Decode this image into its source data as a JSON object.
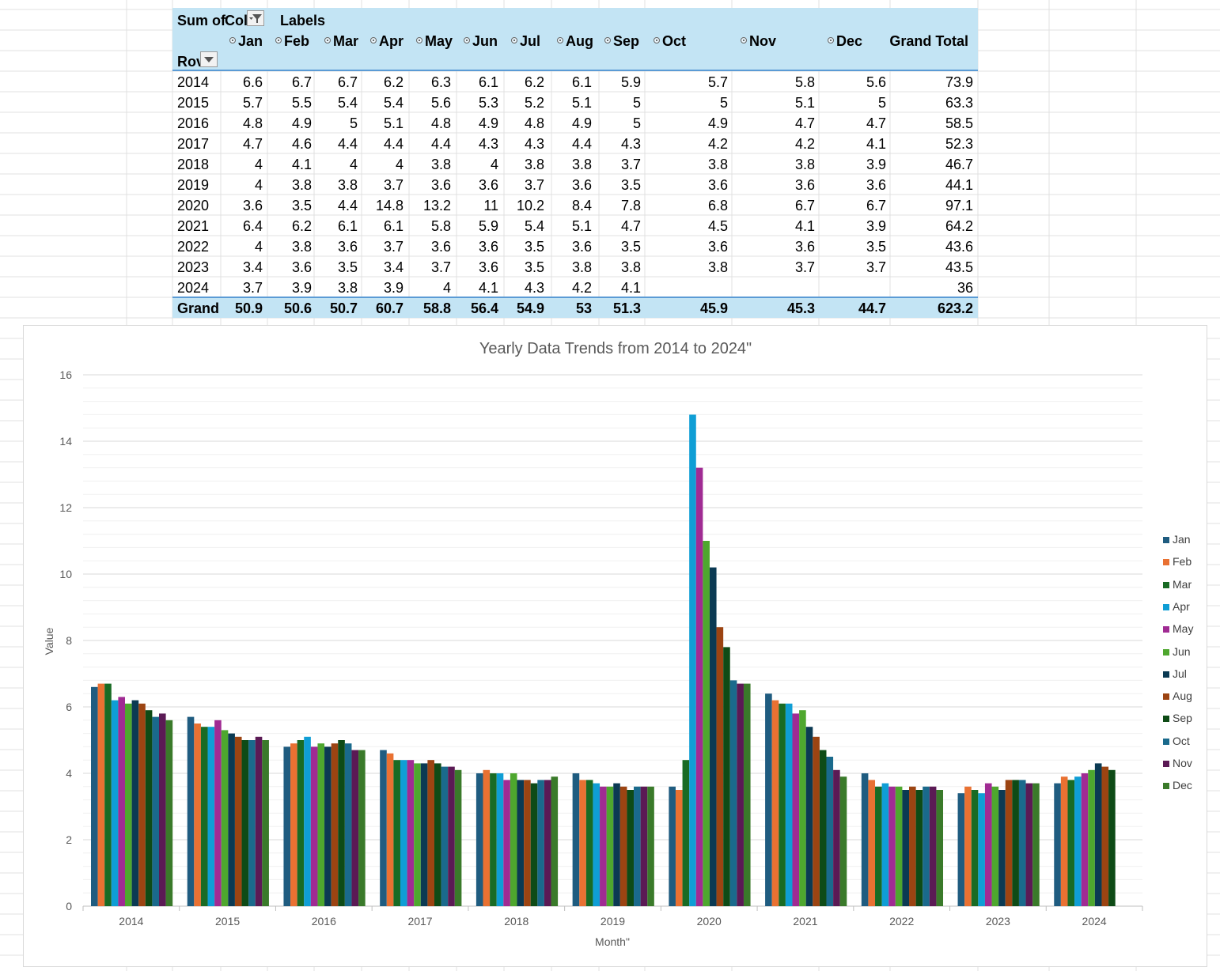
{
  "pivot": {
    "corner_label": "Sum of",
    "col_labels_text_a": "Col",
    "col_labels_text_b": "Labels",
    "row_labels_text": "Rov",
    "grand_total_header": "Grand Total",
    "grand_row_label": "Grand",
    "months": [
      "Jan",
      "Feb",
      "Mar",
      "Apr",
      "May",
      "Jun",
      "Jul",
      "Aug",
      "Sep",
      "Oct",
      "Nov",
      "Dec"
    ],
    "rows": [
      {
        "year": "2014",
        "values": [
          "6.6",
          "6.7",
          "6.7",
          "6.2",
          "6.3",
          "6.1",
          "6.2",
          "6.1",
          "5.9",
          "5.7",
          "5.8",
          "5.6"
        ],
        "total": "73.9"
      },
      {
        "year": "2015",
        "values": [
          "5.7",
          "5.5",
          "5.4",
          "5.4",
          "5.6",
          "5.3",
          "5.2",
          "5.1",
          "5",
          "5",
          "5.1",
          "5"
        ],
        "total": "63.3"
      },
      {
        "year": "2016",
        "values": [
          "4.8",
          "4.9",
          "5",
          "5.1",
          "4.8",
          "4.9",
          "4.8",
          "4.9",
          "5",
          "4.9",
          "4.7",
          "4.7"
        ],
        "total": "58.5"
      },
      {
        "year": "2017",
        "values": [
          "4.7",
          "4.6",
          "4.4",
          "4.4",
          "4.4",
          "4.3",
          "4.3",
          "4.4",
          "4.3",
          "4.2",
          "4.2",
          "4.1"
        ],
        "total": "52.3"
      },
      {
        "year": "2018",
        "values": [
          "4",
          "4.1",
          "4",
          "4",
          "3.8",
          "4",
          "3.8",
          "3.8",
          "3.7",
          "3.8",
          "3.8",
          "3.9"
        ],
        "total": "46.7"
      },
      {
        "year": "2019",
        "values": [
          "4",
          "3.8",
          "3.8",
          "3.7",
          "3.6",
          "3.6",
          "3.7",
          "3.6",
          "3.5",
          "3.6",
          "3.6",
          "3.6"
        ],
        "total": "44.1"
      },
      {
        "year": "2020",
        "values": [
          "3.6",
          "3.5",
          "4.4",
          "14.8",
          "13.2",
          "11",
          "10.2",
          "8.4",
          "7.8",
          "6.8",
          "6.7",
          "6.7"
        ],
        "total": "97.1"
      },
      {
        "year": "2021",
        "values": [
          "6.4",
          "6.2",
          "6.1",
          "6.1",
          "5.8",
          "5.9",
          "5.4",
          "5.1",
          "4.7",
          "4.5",
          "4.1",
          "3.9"
        ],
        "total": "64.2"
      },
      {
        "year": "2022",
        "values": [
          "4",
          "3.8",
          "3.6",
          "3.7",
          "3.6",
          "3.6",
          "3.5",
          "3.6",
          "3.5",
          "3.6",
          "3.6",
          "3.5"
        ],
        "total": "43.6"
      },
      {
        "year": "2023",
        "values": [
          "3.4",
          "3.6",
          "3.5",
          "3.4",
          "3.7",
          "3.6",
          "3.5",
          "3.8",
          "3.8",
          "3.8",
          "3.7",
          "3.7"
        ],
        "total": "43.5"
      },
      {
        "year": "2024",
        "values": [
          "3.7",
          "3.9",
          "3.8",
          "3.9",
          "4",
          "4.1",
          "4.3",
          "4.2",
          "4.1",
          "",
          "",
          ""
        ],
        "total": "36"
      }
    ],
    "grand_values": [
      "50.9",
      "50.6",
      "50.7",
      "60.7",
      "58.8",
      "56.4",
      "54.9",
      "53",
      "51.3",
      "45.9",
      "45.3",
      "44.7"
    ],
    "grand_total": "623.2"
  },
  "chart_data": {
    "type": "bar",
    "title": "Yearly Data Trends from 2014 to 2024\"",
    "xlabel": "Month\"",
    "ylabel": "Value",
    "ylim": [
      0,
      16
    ],
    "y_ticks": [
      "0",
      "2",
      "4",
      "6",
      "8",
      "10",
      "12",
      "14",
      "16"
    ],
    "grid": true,
    "legend_position": "right",
    "categories": [
      "2014",
      "2015",
      "2016",
      "2017",
      "2018",
      "2019",
      "2020",
      "2021",
      "2022",
      "2023",
      "2024"
    ],
    "series": [
      {
        "name": "Jan",
        "color": "#1f5c80",
        "values": [
          6.6,
          5.7,
          4.8,
          4.7,
          4,
          4,
          3.6,
          6.4,
          4,
          3.4,
          3.7
        ]
      },
      {
        "name": "Feb",
        "color": "#e97132",
        "values": [
          6.7,
          5.5,
          4.9,
          4.6,
          4.1,
          3.8,
          3.5,
          6.2,
          3.8,
          3.6,
          3.9
        ]
      },
      {
        "name": "Mar",
        "color": "#196b24",
        "values": [
          6.7,
          5.4,
          5,
          4.4,
          4,
          3.8,
          4.4,
          6.1,
          3.6,
          3.5,
          3.8
        ]
      },
      {
        "name": "Apr",
        "color": "#0f9ed5",
        "values": [
          6.2,
          5.4,
          5.1,
          4.4,
          4,
          3.7,
          14.8,
          6.1,
          3.7,
          3.4,
          3.9
        ]
      },
      {
        "name": "May",
        "color": "#a02b93",
        "values": [
          6.3,
          5.6,
          4.8,
          4.4,
          3.8,
          3.6,
          13.2,
          5.8,
          3.6,
          3.7,
          4
        ]
      },
      {
        "name": "Jun",
        "color": "#4ea72e",
        "values": [
          6.1,
          5.3,
          4.9,
          4.3,
          4,
          3.6,
          11,
          5.9,
          3.6,
          3.6,
          4.1
        ]
      },
      {
        "name": "Jul",
        "color": "#0b3a53",
        "values": [
          6.2,
          5.2,
          4.8,
          4.3,
          3.8,
          3.7,
          10.2,
          5.4,
          3.5,
          3.5,
          4.3
        ]
      },
      {
        "name": "Aug",
        "color": "#9c4412",
        "values": [
          6.1,
          5.1,
          4.9,
          4.4,
          3.8,
          3.6,
          8.4,
          5.1,
          3.6,
          3.8,
          4.2
        ]
      },
      {
        "name": "Sep",
        "color": "#0e4b16",
        "values": [
          5.9,
          5,
          5,
          4.3,
          3.7,
          3.5,
          7.8,
          4.7,
          3.5,
          3.8,
          4.1
        ]
      },
      {
        "name": "Oct",
        "color": "#1a6a8c",
        "values": [
          5.7,
          5,
          4.9,
          4.2,
          3.8,
          3.6,
          6.8,
          4.5,
          3.6,
          3.8,
          null
        ]
      },
      {
        "name": "Nov",
        "color": "#5b1a55",
        "values": [
          5.8,
          5.1,
          4.7,
          4.2,
          3.8,
          3.6,
          6.7,
          4.1,
          3.6,
          3.7,
          null
        ]
      },
      {
        "name": "Dec",
        "color": "#3a7a2a",
        "values": [
          5.6,
          5,
          4.7,
          4.1,
          3.9,
          3.6,
          6.7,
          3.9,
          3.5,
          3.7,
          null
        ]
      }
    ]
  }
}
